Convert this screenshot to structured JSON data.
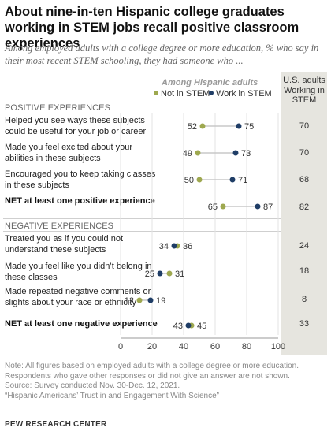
{
  "title": "About nine-in-ten Hispanic college graduates working in STEM jobs recall positive classroom experiences",
  "subtitle": "Among employed adults with a college degree or more education, % who say in their most recent STEM schooling, they had someone who ...",
  "subgroup_label": "Among Hispanic adults",
  "legend": [
    {
      "name": "Not in STEM",
      "color": "#9ea84f"
    },
    {
      "name": "Work in STEM",
      "color": "#1f3d66"
    }
  ],
  "us_header": "U.S. adults Working in STEM",
  "sections": {
    "positive": "POSITIVE EXPERIENCES",
    "negative": "NEGATIVE EXPERIENCES"
  },
  "rows": [
    {
      "label": "Helped you see ways these subjects could be useful for your job or career",
      "not_stem": 52,
      "stem": 75,
      "us": "70",
      "bold": false
    },
    {
      "label": "Made you feel excited about your abilities in these subjects",
      "not_stem": 49,
      "stem": 73,
      "us": "70",
      "bold": false
    },
    {
      "label": "Encouraged you to keep taking classes in these subjects",
      "not_stem": 50,
      "stem": 71,
      "us": "68",
      "bold": false
    },
    {
      "label": "NET at least one positive experience",
      "not_stem": 65,
      "stem": 87,
      "us": "82",
      "bold": true
    },
    {
      "label": "Treated you as if you could not understand these subjects",
      "not_stem": 36,
      "stem": 34,
      "us": "24",
      "bold": false
    },
    {
      "label": "Made you feel like you didn’t belong in these classes",
      "not_stem": 31,
      "stem": 25,
      "us": "18",
      "bold": false
    },
    {
      "label": "Made repeated negative comments or slights about your race or ethnicity",
      "not_stem": 12,
      "stem": 19,
      "us": "8",
      "bold": false
    },
    {
      "label": "NET at least one negative experience",
      "not_stem": 45,
      "stem": 43,
      "us": "33",
      "bold": true
    }
  ],
  "chart_data": {
    "type": "scatter",
    "title": "About nine-in-ten Hispanic college graduates working in STEM jobs recall positive classroom experiences",
    "categories": [
      "Helped you see ways these subjects could be useful for your job or career",
      "Made you feel excited about your abilities in these subjects",
      "Encouraged you to keep taking classes in these subjects",
      "NET at least one positive experience",
      "Treated you as if you could not understand these subjects",
      "Made you feel like you didn’t belong in these classes",
      "Made repeated negative comments or slights about your race or ethnicity",
      "NET at least one negative experience"
    ],
    "series": [
      {
        "name": "Not in STEM",
        "values": [
          52,
          49,
          50,
          65,
          36,
          31,
          12,
          45
        ]
      },
      {
        "name": "Work in STEM",
        "values": [
          75,
          73,
          71,
          87,
          34,
          25,
          19,
          43
        ]
      }
    ],
    "us_adults_working_in_stem": [
      70,
      70,
      68,
      82,
      24,
      18,
      8,
      33
    ],
    "xlim": [
      0,
      100
    ],
    "xticks": [
      0,
      20,
      40,
      60,
      80,
      100
    ],
    "legend_position": "top"
  },
  "footer_lines": [
    "Note: All figures based on employed adults with a college degree or more education.",
    "Respondents who gave other responses or did not give an answer are not shown.",
    "Source: Survey conducted Nov. 30-Dec. 12, 2021.",
    "“Hispanic Americans’ Trust in and Engagement With Science”"
  ],
  "brand": "PEW RESEARCH CENTER"
}
